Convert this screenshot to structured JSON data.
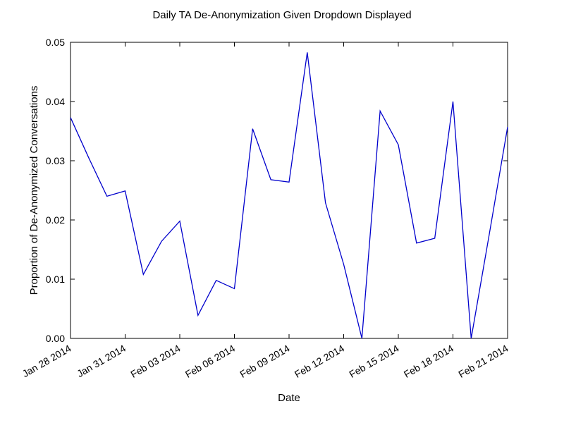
{
  "chart_data": {
    "type": "line",
    "title": "Daily TA De-Anonymization Given Dropdown Displayed",
    "xlabel": "Date",
    "ylabel": "Proportion of De-Anonymized Conversations",
    "ylim": [
      0.0,
      0.05
    ],
    "xlim": [
      "2014-01-28",
      "2014-02-21"
    ],
    "grid": false,
    "line_color": "#0000cc",
    "y_ticks": [
      "0.00",
      "0.01",
      "0.02",
      "0.03",
      "0.04",
      "0.05"
    ],
    "x_tick_dates": [
      "2014-01-28",
      "2014-01-31",
      "2014-02-03",
      "2014-02-06",
      "2014-02-09",
      "2014-02-12",
      "2014-02-15",
      "2014-02-18",
      "2014-02-21"
    ],
    "x_tick_labels": [
      "Jan 28 2014",
      "Jan 31 2014",
      "Feb 03 2014",
      "Feb 06 2014",
      "Feb 09 2014",
      "Feb 12 2014",
      "Feb 15 2014",
      "Feb 18 2014",
      "Feb 21 2014"
    ],
    "x": [
      "2014-01-28",
      "2014-01-29",
      "2014-01-30",
      "2014-01-31",
      "2014-02-01",
      "2014-02-02",
      "2014-02-03",
      "2014-02-04",
      "2014-02-05",
      "2014-02-06",
      "2014-02-07",
      "2014-02-08",
      "2014-02-09",
      "2014-02-10",
      "2014-02-11",
      "2014-02-12",
      "2014-02-13",
      "2014-02-14",
      "2014-02-15",
      "2014-02-16",
      "2014-02-17",
      "2014-02-18",
      "2014-02-19",
      "2014-02-20",
      "2014-02-21"
    ],
    "values": [
      0.0373,
      0.0305,
      0.024,
      0.0249,
      0.0108,
      0.0164,
      0.0198,
      0.0039,
      0.0098,
      0.0084,
      0.0354,
      0.0268,
      0.0264,
      0.0483,
      0.0229,
      0.0125,
      0.0,
      0.0384,
      0.0327,
      0.0161,
      0.0169,
      0.04,
      0.0,
      0.0177,
      0.0357
    ]
  }
}
